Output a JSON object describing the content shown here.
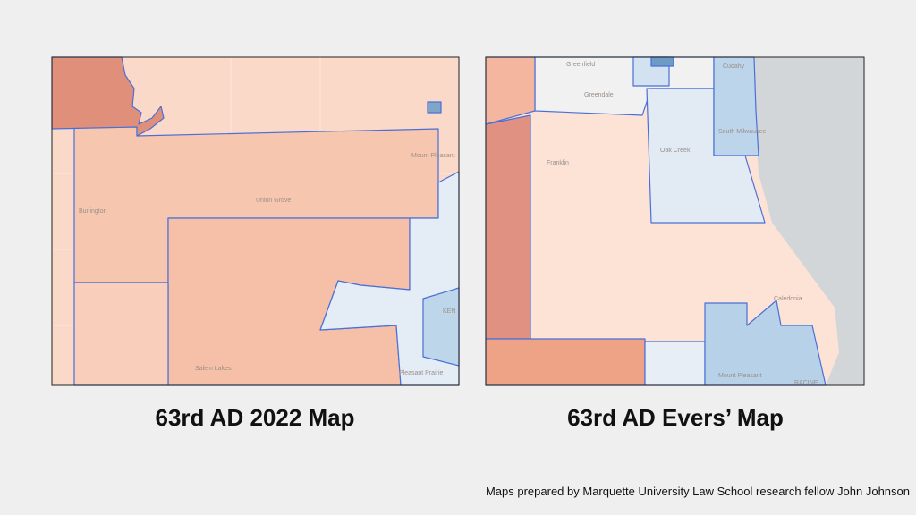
{
  "slide": {
    "maps": [
      {
        "title": "63rd AD 2022 Map",
        "place_labels": [
          "Burlington",
          "Union Grove",
          "Mount Pleasant",
          "KEN",
          "Salem Lakes",
          "Pleasant Prairie"
        ]
      },
      {
        "title": "63rd AD Evers’ Map",
        "place_labels": [
          "Greenfield",
          "Greendale",
          "Cudahy",
          "Oak Creek",
          "South Milwaukee",
          "Franklin",
          "Caledonia",
          "Mount Pleasant",
          "RACINE"
        ]
      }
    ],
    "credit": "Maps prepared by Marquette University Law School research fellow John Johnson"
  }
}
